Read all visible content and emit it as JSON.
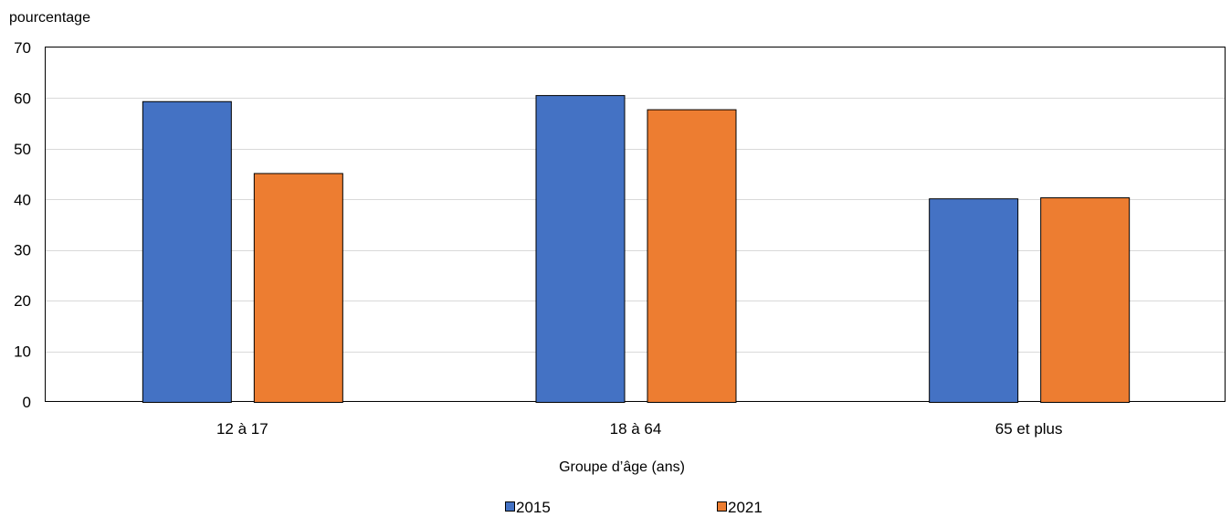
{
  "chart_data": {
    "type": "bar",
    "ylabel": "pourcentage",
    "xlabel": "Groupe d’âge (ans)",
    "categories": [
      "12 à 17",
      "18 à 64",
      "65 et plus"
    ],
    "series": [
      {
        "name": "2015",
        "values": [
          59.4,
          60.6,
          40.2
        ],
        "color": "#4472C4"
      },
      {
        "name": "2021",
        "values": [
          45.2,
          57.8,
          40.4
        ],
        "color": "#ED7D31"
      }
    ],
    "ylim": [
      0,
      70
    ],
    "yticks": [
      "0",
      "10",
      "20",
      "30",
      "40",
      "50",
      "60",
      "70"
    ],
    "grid": true,
    "legend_position": "bottom"
  }
}
